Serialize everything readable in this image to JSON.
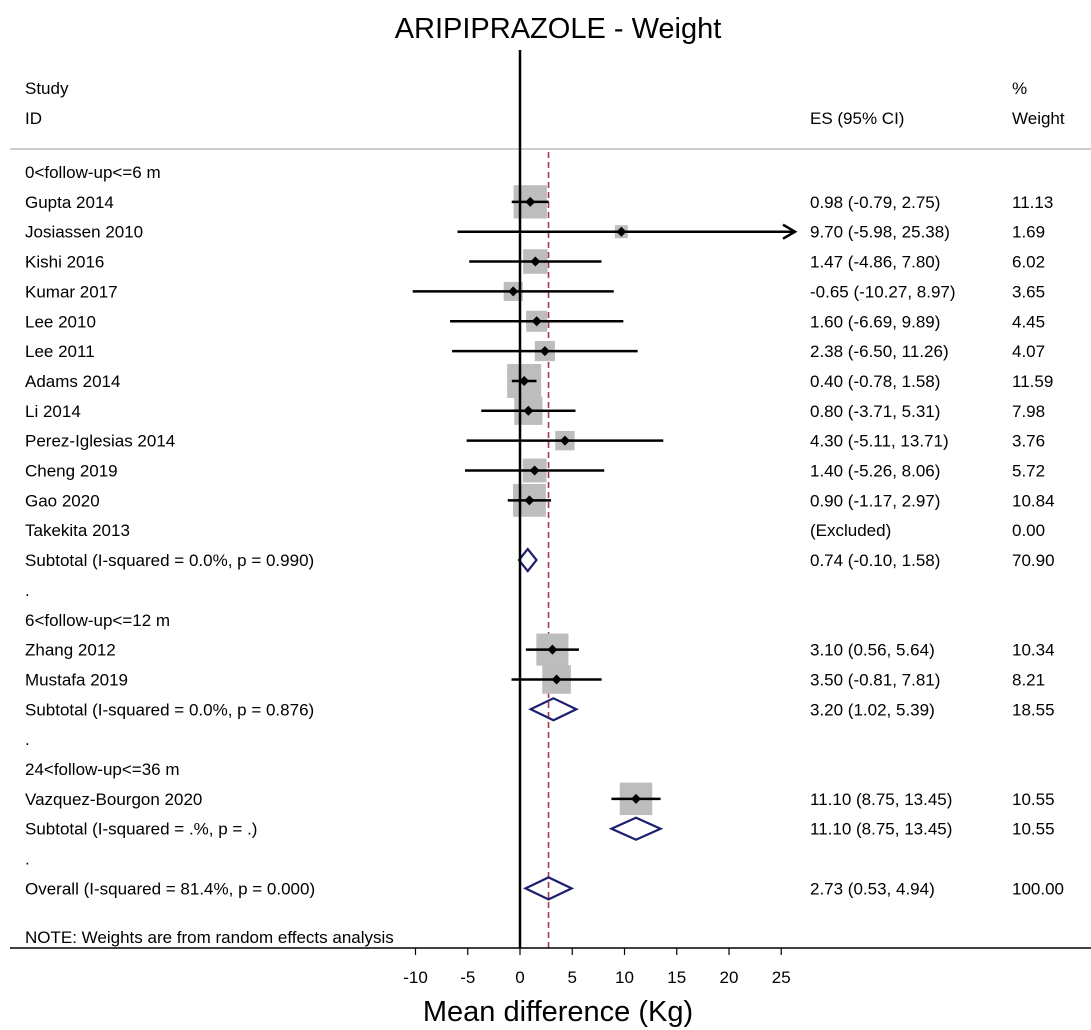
{
  "chart_data": {
    "type": "forest",
    "title": "ARIPIPRAZOLE - Weight",
    "xlabel": "Mean difference (Kg)",
    "header": {
      "study_line1": "Study",
      "study_line2": "ID",
      "es": "ES (95% CI)",
      "weight_line1": "%",
      "weight_line2": "Weight"
    },
    "xticks": [
      "-10",
      "-5",
      "0",
      "5",
      "10",
      "15",
      "20",
      "25"
    ],
    "xlim": [
      -10,
      25
    ],
    "overall_line": 2.73,
    "note": "NOTE: Weights are from random effects analysis",
    "rows": [
      {
        "kind": "group",
        "label": "0<follow-up<=6 m"
      },
      {
        "kind": "study",
        "label": "Gupta 2014",
        "es": 0.98,
        "lo": -0.79,
        "hi": 2.75,
        "ci_text": "0.98 (-0.79, 2.75)",
        "weight": "11.13"
      },
      {
        "kind": "study",
        "label": "Josiassen 2010",
        "es": 9.7,
        "lo": -5.98,
        "hi": 25.38,
        "ci_text": "9.70 (-5.98, 25.38)",
        "weight": "1.69",
        "arrow": true
      },
      {
        "kind": "study",
        "label": "Kishi 2016",
        "es": 1.47,
        "lo": -4.86,
        "hi": 7.8,
        "ci_text": "1.47 (-4.86, 7.80)",
        "weight": "6.02"
      },
      {
        "kind": "study",
        "label": "Kumar 2017",
        "es": -0.65,
        "lo": -10.27,
        "hi": 8.97,
        "ci_text": "-0.65 (-10.27, 8.97)",
        "weight": "3.65"
      },
      {
        "kind": "study",
        "label": "Lee 2010",
        "es": 1.6,
        "lo": -6.69,
        "hi": 9.89,
        "ci_text": "1.60 (-6.69, 9.89)",
        "weight": "4.45"
      },
      {
        "kind": "study",
        "label": "Lee 2011",
        "es": 2.38,
        "lo": -6.5,
        "hi": 11.26,
        "ci_text": "2.38 (-6.50, 11.26)",
        "weight": "4.07"
      },
      {
        "kind": "study",
        "label": "Adams 2014",
        "es": 0.4,
        "lo": -0.78,
        "hi": 1.58,
        "ci_text": "0.40 (-0.78, 1.58)",
        "weight": "11.59"
      },
      {
        "kind": "study",
        "label": "Li 2014",
        "es": 0.8,
        "lo": -3.71,
        "hi": 5.31,
        "ci_text": "0.80 (-3.71, 5.31)",
        "weight": "7.98"
      },
      {
        "kind": "study",
        "label": "Perez-Iglesias 2014",
        "es": 4.3,
        "lo": -5.11,
        "hi": 13.71,
        "ci_text": "4.30 (-5.11, 13.71)",
        "weight": "3.76"
      },
      {
        "kind": "study",
        "label": "Cheng 2019",
        "es": 1.4,
        "lo": -5.26,
        "hi": 8.06,
        "ci_text": "1.40 (-5.26, 8.06)",
        "weight": "5.72"
      },
      {
        "kind": "study",
        "label": "Gao 2020",
        "es": 0.9,
        "lo": -1.17,
        "hi": 2.97,
        "ci_text": "0.90 (-1.17, 2.97)",
        "weight": "10.84"
      },
      {
        "kind": "excluded",
        "label": "Takekita 2013",
        "ci_text": "(Excluded)",
        "weight": "0.00"
      },
      {
        "kind": "subtotal",
        "label": "Subtotal  (I-squared = 0.0%, p = 0.990)",
        "es": 0.74,
        "lo": -0.1,
        "hi": 1.58,
        "ci_text": "0.74 (-0.10, 1.58)",
        "weight": "70.90"
      },
      {
        "kind": "dot",
        "label": "."
      },
      {
        "kind": "group",
        "label": "6<follow-up<=12 m"
      },
      {
        "kind": "study",
        "label": "Zhang 2012",
        "es": 3.1,
        "lo": 0.56,
        "hi": 5.64,
        "ci_text": "3.10 (0.56, 5.64)",
        "weight": "10.34"
      },
      {
        "kind": "study",
        "label": "Mustafa 2019",
        "es": 3.5,
        "lo": -0.81,
        "hi": 7.81,
        "ci_text": "3.50 (-0.81, 7.81)",
        "weight": "8.21"
      },
      {
        "kind": "subtotal",
        "label": "Subtotal  (I-squared = 0.0%, p = 0.876)",
        "es": 3.2,
        "lo": 1.02,
        "hi": 5.39,
        "ci_text": "3.20 (1.02, 5.39)",
        "weight": "18.55"
      },
      {
        "kind": "dot",
        "label": "."
      },
      {
        "kind": "group",
        "label": "24<follow-up<=36 m"
      },
      {
        "kind": "study",
        "label": "Vazquez-Bourgon 2020",
        "es": 11.1,
        "lo": 8.75,
        "hi": 13.45,
        "ci_text": "11.10 (8.75, 13.45)",
        "weight": "10.55"
      },
      {
        "kind": "subtotal",
        "label": "Subtotal  (I-squared = .%, p = .)",
        "es": 11.1,
        "lo": 8.75,
        "hi": 13.45,
        "ci_text": "11.10 (8.75, 13.45)",
        "weight": "10.55"
      },
      {
        "kind": "dot",
        "label": "."
      },
      {
        "kind": "subtotal",
        "label": "Overall  (I-squared = 81.4%, p = 0.000)",
        "es": 2.73,
        "lo": 0.53,
        "hi": 4.94,
        "ci_text": "2.73 (0.53, 4.94)",
        "weight": "100.00"
      }
    ],
    "colors": {
      "box": "#bdbdbd",
      "diamond": "#1a1f6e",
      "overall_line": "#a33b4a",
      "header_rule": "#bcbcbc"
    }
  }
}
